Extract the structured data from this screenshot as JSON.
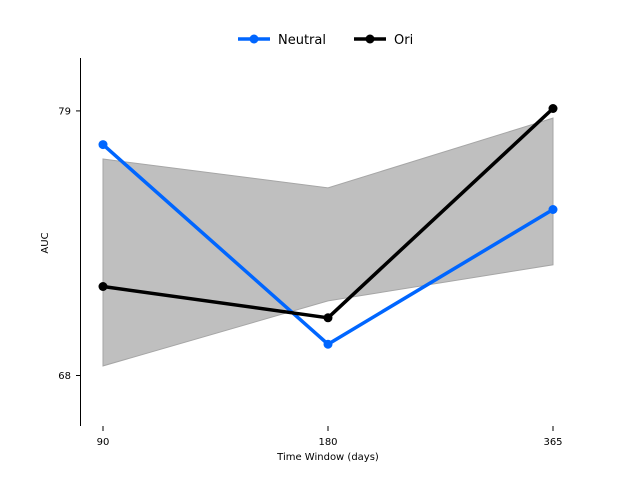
{
  "chart_data": {
    "type": "line",
    "title": "",
    "xlabel": "Time Window (days)",
    "ylabel": "AUC",
    "categories": [
      "90",
      "180",
      "365"
    ],
    "x_tick_labels": [
      "90",
      "180",
      "365"
    ],
    "y_ticks": [
      68,
      79
    ],
    "y_tick_labels": [
      "68",
      "79"
    ],
    "ylim": [
      65.9,
      81.2
    ],
    "grid": false,
    "legend_position": "top-center",
    "series": [
      {
        "name": "Neutral",
        "color": "#0066ff",
        "marker": "circle",
        "values": [
          77.6,
          69.3,
          74.9
        ]
      },
      {
        "name": "Ori",
        "color": "#000000",
        "marker": "circle",
        "values": [
          71.7,
          70.4,
          79.1
        ]
      }
    ],
    "band": {
      "color": "#bfbfbf",
      "edge_color": "#a6a6a6",
      "lower": [
        68.4,
        71.1,
        72.6
      ],
      "upper": [
        77.0,
        75.8,
        78.7
      ]
    }
  }
}
